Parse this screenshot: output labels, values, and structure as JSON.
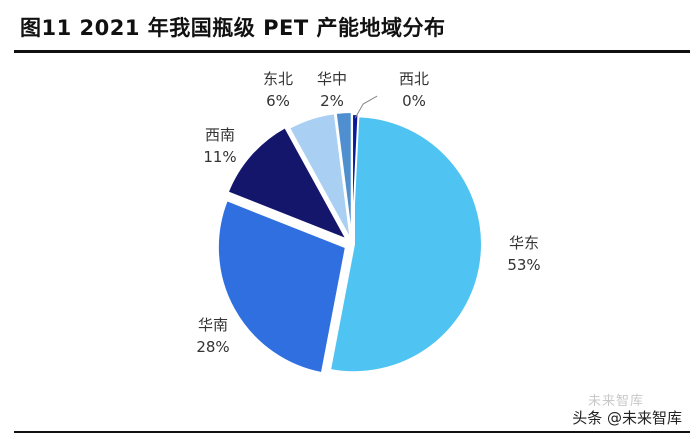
{
  "chart_data": {
    "type": "pie",
    "title": "图11 2021 年我国瓶级 PET 产能地域分布",
    "slices": [
      {
        "name": "华东",
        "value": 53,
        "label": "53%",
        "color": "#4fc3f1"
      },
      {
        "name": "华南",
        "value": 28,
        "label": "28%",
        "color": "#2f6fe0"
      },
      {
        "name": "西南",
        "value": 11,
        "label": "11%",
        "color": "#14166b"
      },
      {
        "name": "东北",
        "value": 6,
        "label": "6%",
        "color": "#a9cff3"
      },
      {
        "name": "华中",
        "value": 2,
        "label": "2%",
        "color": "#4f8fd0"
      },
      {
        "name": "西北",
        "value": 0,
        "label": "0%",
        "color": "#0a1a9a"
      }
    ]
  },
  "watermark": {
    "text": "头条 @未来智库",
    "faint_text": "未来智库"
  }
}
